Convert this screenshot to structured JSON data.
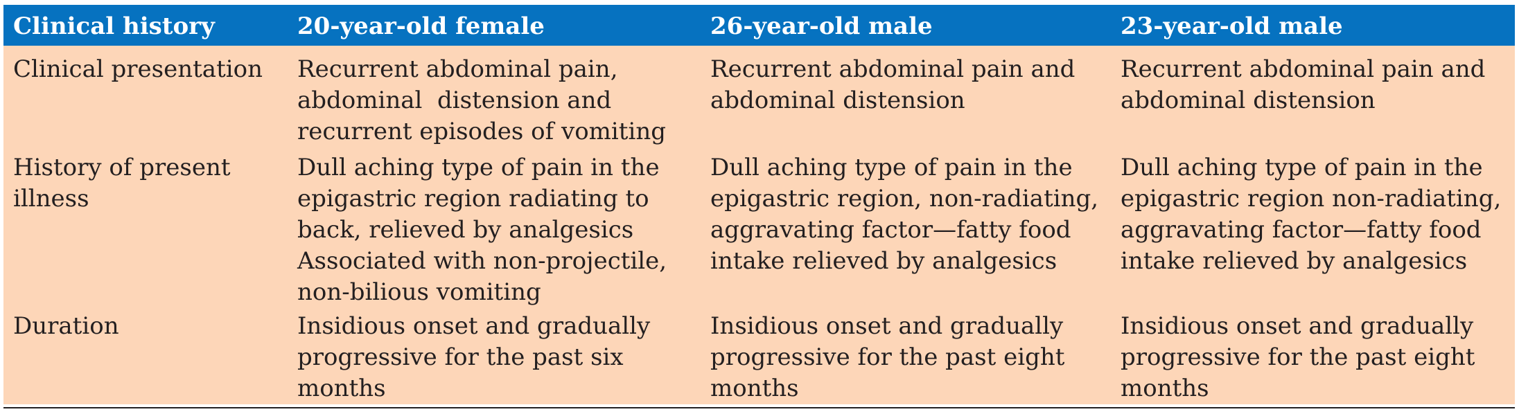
{
  "header": {
    "col1": "Clinical history",
    "col2": "20-year-old female",
    "col3": "26-year-old male",
    "col4": "23-year-old male"
  },
  "rows": [
    {
      "label": "Clinical presentation",
      "cells": [
        [
          "Recurrent abdominal pain,",
          "abdominal  distension and",
          "recurrent episodes of vomiting"
        ],
        [
          "Recurrent abdominal pain and",
          "abdominal distension"
        ],
        [
          "Recurrent abdominal pain and",
          "abdominal distension"
        ]
      ]
    },
    {
      "label_lines": [
        "History of present",
        "illness"
      ],
      "cells": [
        [
          "Dull aching type of pain in the",
          "epigastric region radiating to",
          "back, relieved by analgesics",
          "Associated with non-projectile,",
          "non-bilious vomiting"
        ],
        [
          "Dull aching type of pain in the",
          "epigastric region, non-radiating,",
          "aggravating factor—fatty food",
          "intake relieved by analgesics"
        ],
        [
          "Dull aching type of pain in the",
          "epigastric region non-radiating,",
          "aggravating factor—fatty food",
          "intake relieved by analgesics"
        ]
      ]
    },
    {
      "label": "Duration",
      "cells": [
        [
          "Insidious onset and gradually",
          "progressive for the past six",
          "months"
        ],
        [
          "Insidious onset and gradually",
          "progressive for the past eight",
          "months"
        ],
        [
          "Insidious onset and gradually",
          "progressive for the past eight",
          "months"
        ]
      ]
    }
  ],
  "colors": {
    "header_bg": "#0672c0",
    "header_text": "#ffffff",
    "body_bg": "#fdd6b8",
    "body_text": "#231f20"
  }
}
